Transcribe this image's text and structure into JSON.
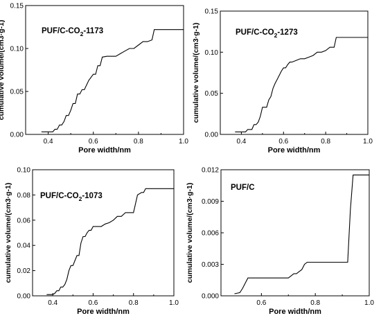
{
  "figure": {
    "panels": [
      {
        "label_main": "PUF/C-CO",
        "label_sub": "2",
        "label_tail": "-1173"
      },
      {
        "label_main": "PUF/C-CO",
        "label_sub": "2",
        "label_tail": "-1273"
      },
      {
        "label_main": "PUF/C-CO",
        "label_sub": "2",
        "label_tail": "-1073"
      },
      {
        "label_main": "PUF/C",
        "label_sub": "",
        "label_tail": ""
      }
    ]
  },
  "chart_data": [
    {
      "type": "line",
      "title": "PUF/C-CO2-1173",
      "xlabel": "Pore width/nm",
      "ylabel": "cumulative volume/(cm3·g-1)",
      "xlim": [
        0.3,
        1.0
      ],
      "ylim": [
        0,
        0.15
      ],
      "x_ticks": [
        "0.4",
        "0.6",
        "0.8",
        "1.0"
      ],
      "y_ticks": [
        "0.00",
        "0.05",
        "0.10",
        "0.15"
      ],
      "x": [
        0.37,
        0.42,
        0.43,
        0.44,
        0.45,
        0.46,
        0.47,
        0.48,
        0.49,
        0.5,
        0.51,
        0.52,
        0.53,
        0.54,
        0.55,
        0.56,
        0.58,
        0.6,
        0.61,
        0.62,
        0.63,
        0.64,
        0.66,
        0.68,
        0.7,
        0.72,
        0.74,
        0.76,
        0.78,
        0.8,
        0.82,
        0.84,
        0.86,
        0.87,
        1.0
      ],
      "y": [
        0.003,
        0.003,
        0.006,
        0.006,
        0.011,
        0.011,
        0.015,
        0.022,
        0.022,
        0.028,
        0.036,
        0.036,
        0.047,
        0.047,
        0.052,
        0.052,
        0.063,
        0.07,
        0.07,
        0.08,
        0.08,
        0.09,
        0.091,
        0.091,
        0.091,
        0.094,
        0.097,
        0.1,
        0.1,
        0.104,
        0.108,
        0.108,
        0.11,
        0.122,
        0.122
      ]
    },
    {
      "type": "line",
      "title": "PUF/C-CO2-1273",
      "xlabel": "Pore width/nm",
      "ylabel": "cumulative volume/(cm3·g-1)",
      "xlim": [
        0.3,
        1.0
      ],
      "ylim": [
        0,
        0.15
      ],
      "x_ticks": [
        "0.4",
        "0.6",
        "0.8",
        "1.0"
      ],
      "y_ticks": [
        "0.00",
        "0.05",
        "0.10",
        "0.15"
      ],
      "x": [
        0.37,
        0.42,
        0.43,
        0.45,
        0.46,
        0.47,
        0.48,
        0.49,
        0.5,
        0.51,
        0.52,
        0.53,
        0.54,
        0.55,
        0.56,
        0.57,
        0.58,
        0.59,
        0.6,
        0.61,
        0.62,
        0.63,
        0.64,
        0.66,
        0.68,
        0.7,
        0.72,
        0.74,
        0.76,
        0.78,
        0.8,
        0.82,
        0.84,
        0.85,
        1.0
      ],
      "y": [
        0.003,
        0.003,
        0.006,
        0.006,
        0.012,
        0.012,
        0.015,
        0.022,
        0.033,
        0.033,
        0.033,
        0.042,
        0.046,
        0.056,
        0.062,
        0.067,
        0.072,
        0.077,
        0.081,
        0.081,
        0.085,
        0.088,
        0.088,
        0.09,
        0.092,
        0.092,
        0.094,
        0.096,
        0.1,
        0.1,
        0.102,
        0.106,
        0.106,
        0.118,
        0.118
      ]
    },
    {
      "type": "line",
      "title": "PUF/C-CO2-1073",
      "xlabel": "Pore width/nm",
      "ylabel": "cumulative volume/(cm3·g-1)",
      "xlim": [
        0.3,
        1.0
      ],
      "ylim": [
        0,
        0.1
      ],
      "x_ticks": [
        "0.4",
        "0.6",
        "0.8",
        "1.0"
      ],
      "y_ticks": [
        "0.00",
        "0.02",
        "0.04",
        "0.06",
        "0.08",
        "0.10"
      ],
      "x": [
        0.37,
        0.4,
        0.41,
        0.42,
        0.43,
        0.44,
        0.45,
        0.46,
        0.47,
        0.48,
        0.49,
        0.5,
        0.51,
        0.52,
        0.53,
        0.54,
        0.55,
        0.56,
        0.57,
        0.58,
        0.59,
        0.6,
        0.61,
        0.62,
        0.64,
        0.66,
        0.68,
        0.7,
        0.72,
        0.74,
        0.76,
        0.78,
        0.8,
        0.82,
        0.84,
        0.85,
        0.86,
        0.87,
        1.0
      ],
      "y": [
        0.001,
        0.001,
        0.002,
        0.004,
        0.004,
        0.007,
        0.007,
        0.009,
        0.013,
        0.02,
        0.024,
        0.024,
        0.028,
        0.032,
        0.032,
        0.042,
        0.047,
        0.047,
        0.05,
        0.052,
        0.052,
        0.055,
        0.055,
        0.055,
        0.055,
        0.057,
        0.058,
        0.06,
        0.063,
        0.063,
        0.066,
        0.066,
        0.066,
        0.08,
        0.082,
        0.082,
        0.085,
        0.085,
        0.085
      ]
    },
    {
      "type": "line",
      "title": "PUF/C",
      "xlabel": "Pore width/nm",
      "ylabel": "cumulative volume/(cm3·g-1)",
      "xlim": [
        0.45,
        1.0
      ],
      "ylim": [
        0,
        0.012
      ],
      "x_ticks": [
        "0.6",
        "0.8",
        "1.0"
      ],
      "y_ticks": [
        "0.000",
        "0.003",
        "0.006",
        "0.009",
        "0.012"
      ],
      "x": [
        0.5,
        0.52,
        0.53,
        0.54,
        0.55,
        0.6,
        0.65,
        0.7,
        0.71,
        0.72,
        0.73,
        0.74,
        0.75,
        0.76,
        0.77,
        0.8,
        0.85,
        0.9,
        0.92,
        0.93,
        0.94,
        1.0
      ],
      "y": [
        0.0002,
        0.0003,
        0.0007,
        0.0012,
        0.0017,
        0.0017,
        0.0017,
        0.0017,
        0.0019,
        0.0021,
        0.0021,
        0.0023,
        0.0025,
        0.003,
        0.0032,
        0.0032,
        0.0032,
        0.0032,
        0.0032,
        0.0082,
        0.0115,
        0.0115
      ]
    }
  ]
}
